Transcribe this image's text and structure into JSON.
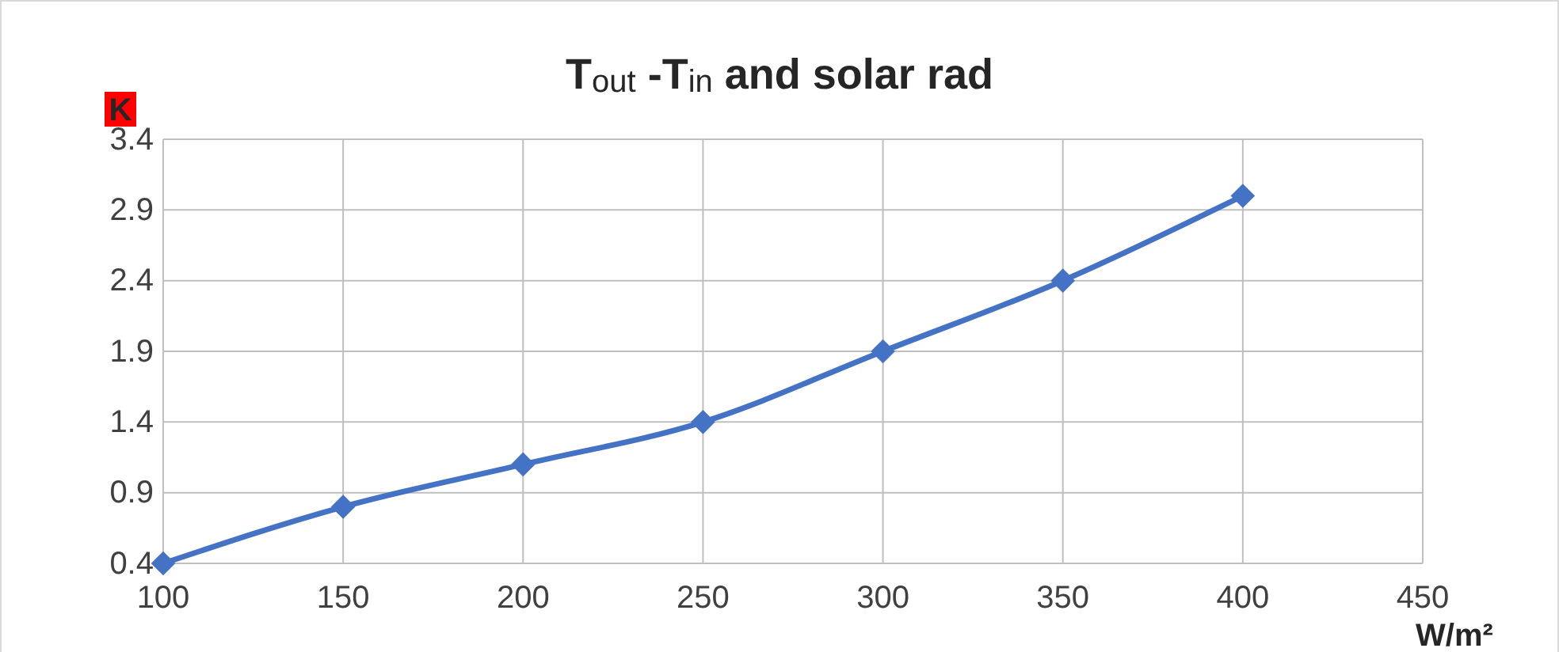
{
  "chart_data": {
    "type": "line",
    "title": "T$_{out}$ -T$_{in}$ and solar rad",
    "ylabel": "K",
    "xlabel": "W/m²",
    "x": [
      100,
      150,
      200,
      250,
      300,
      350,
      400
    ],
    "series": [
      {
        "color": "#4472c4",
        "values": [
          0.4,
          0.8,
          1.1,
          1.4,
          1.9,
          2.4,
          3.0
        ]
      }
    ],
    "xlim": [
      100,
      450
    ],
    "xticks": [
      100,
      150,
      200,
      250,
      300,
      350,
      400,
      450
    ],
    "ylim": [
      0.4,
      3.4
    ],
    "yticks": [
      0.4,
      0.9,
      1.4,
      1.9,
      2.4,
      2.9,
      3.4
    ],
    "grid": true,
    "marker": "diamond",
    "line_style": "solid"
  }
}
